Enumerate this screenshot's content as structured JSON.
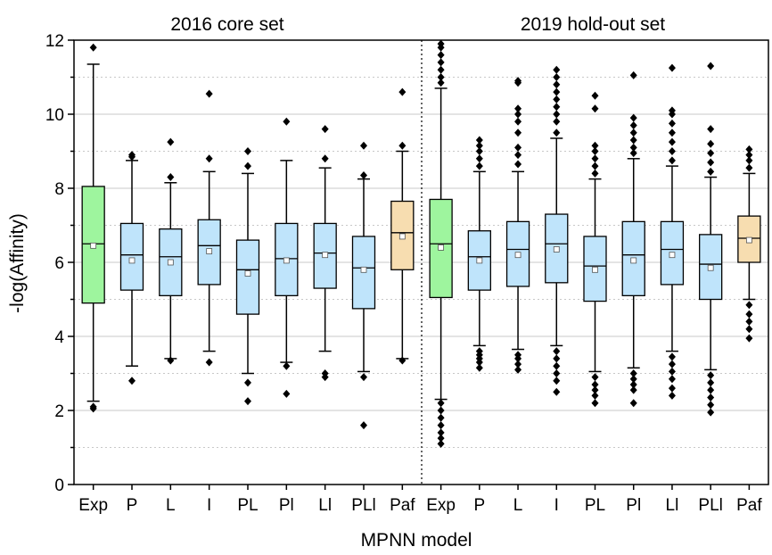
{
  "chart_data": {
    "type": "box",
    "ylabel": "-log(Affinity)",
    "xlabel": "MPNN model",
    "ylim": [
      0,
      12
    ],
    "yticks": [
      "0",
      "2",
      "4",
      "6",
      "8",
      "10",
      "12"
    ],
    "grid": true,
    "colors": {
      "exp": "#9ef59e",
      "model": "#bfe4fb",
      "paf": "#f7ddb0",
      "grid": "#c8c8c8"
    },
    "panels": [
      {
        "title": "2016 core set",
        "categories": [
          "Exp",
          "P",
          "L",
          "I",
          "PL",
          "Pl",
          "Ll",
          "PLl",
          "Paf"
        ],
        "boxes": [
          {
            "q1": 4.9,
            "median": 6.5,
            "q3": 8.05,
            "mean": 6.45,
            "whisker_low": 2.25,
            "whisker_high": 11.35,
            "outliers": [
              2.1,
              2.05,
              11.8
            ],
            "style": "exp"
          },
          {
            "q1": 5.25,
            "median": 6.2,
            "q3": 7.05,
            "mean": 6.05,
            "whisker_low": 3.2,
            "whisker_high": 8.75,
            "outliers": [
              2.8,
              8.85,
              8.9
            ],
            "style": "model"
          },
          {
            "q1": 5.1,
            "median": 6.15,
            "q3": 6.9,
            "mean": 6.0,
            "whisker_low": 3.4,
            "whisker_high": 8.15,
            "outliers": [
              3.35,
              8.3,
              9.25
            ],
            "style": "model"
          },
          {
            "q1": 5.4,
            "median": 6.45,
            "q3": 7.15,
            "mean": 6.3,
            "whisker_low": 3.6,
            "whisker_high": 8.45,
            "outliers": [
              3.3,
              8.8,
              10.55
            ],
            "style": "model"
          },
          {
            "q1": 4.6,
            "median": 5.8,
            "q3": 6.6,
            "mean": 5.7,
            "whisker_low": 3.0,
            "whisker_high": 8.4,
            "outliers": [
              2.75,
              2.25,
              8.6,
              9.0
            ],
            "style": "model"
          },
          {
            "q1": 5.1,
            "median": 6.1,
            "q3": 7.05,
            "mean": 6.05,
            "whisker_low": 3.3,
            "whisker_high": 8.75,
            "outliers": [
              3.2,
              2.45,
              9.8
            ],
            "style": "model"
          },
          {
            "q1": 5.3,
            "median": 6.25,
            "q3": 7.05,
            "mean": 6.2,
            "whisker_low": 3.6,
            "whisker_high": 8.55,
            "outliers": [
              3.0,
              2.9,
              8.8,
              9.6
            ],
            "style": "model"
          },
          {
            "q1": 4.75,
            "median": 5.85,
            "q3": 6.7,
            "mean": 5.8,
            "whisker_low": 3.05,
            "whisker_high": 8.25,
            "outliers": [
              2.9,
              1.6,
              8.35,
              9.15
            ],
            "style": "model"
          },
          {
            "q1": 5.8,
            "median": 6.8,
            "q3": 7.65,
            "mean": 6.7,
            "whisker_low": 3.4,
            "whisker_high": 9.0,
            "outliers": [
              3.35,
              9.15,
              10.6
            ],
            "style": "paf"
          }
        ]
      },
      {
        "title": "2019 hold-out set",
        "categories": [
          "Exp",
          "P",
          "L",
          "I",
          "PL",
          "Pl",
          "Ll",
          "PLl",
          "Paf"
        ],
        "boxes": [
          {
            "q1": 5.05,
            "median": 6.5,
            "q3": 7.7,
            "mean": 6.4,
            "whisker_low": 2.3,
            "whisker_high": 10.7,
            "outliers": [
              2.2,
              2.0,
              1.8,
              1.6,
              1.4,
              1.25,
              1.1,
              10.85,
              11.0,
              11.2,
              11.4,
              11.6,
              11.8,
              11.9
            ],
            "style": "exp"
          },
          {
            "q1": 5.25,
            "median": 6.15,
            "q3": 6.85,
            "mean": 6.05,
            "whisker_low": 3.75,
            "whisker_high": 8.45,
            "outliers": [
              3.6,
              3.5,
              3.4,
              3.3,
              3.15,
              8.6,
              8.8,
              9.0,
              9.15,
              9.3
            ],
            "style": "model"
          },
          {
            "q1": 5.35,
            "median": 6.35,
            "q3": 7.1,
            "mean": 6.2,
            "whisker_low": 3.65,
            "whisker_high": 8.45,
            "outliers": [
              3.5,
              3.4,
              3.25,
              3.1,
              8.65,
              8.9,
              9.1,
              9.5,
              9.8,
              10.0,
              10.15,
              10.85,
              10.9
            ],
            "style": "model"
          },
          {
            "q1": 5.45,
            "median": 6.5,
            "q3": 7.3,
            "mean": 6.35,
            "whisker_low": 3.75,
            "whisker_high": 9.35,
            "outliers": [
              3.6,
              3.4,
              3.2,
              3.0,
              2.8,
              2.5,
              9.5,
              9.8,
              10.0,
              10.2,
              10.4,
              10.6,
              10.8,
              11.0,
              11.2
            ],
            "style": "model"
          },
          {
            "q1": 4.95,
            "median": 5.9,
            "q3": 6.7,
            "mean": 5.8,
            "whisker_low": 3.05,
            "whisker_high": 8.25,
            "outliers": [
              2.9,
              2.7,
              2.55,
              2.4,
              2.2,
              8.4,
              8.6,
              8.8,
              9.0,
              9.15,
              10.15,
              10.5
            ],
            "style": "model"
          },
          {
            "q1": 5.1,
            "median": 6.2,
            "q3": 7.1,
            "mean": 6.05,
            "whisker_low": 3.15,
            "whisker_high": 8.8,
            "outliers": [
              3.0,
              2.85,
              2.7,
              2.55,
              2.2,
              8.95,
              9.1,
              9.3,
              9.5,
              9.7,
              9.9,
              11.05
            ],
            "style": "model"
          },
          {
            "q1": 5.4,
            "median": 6.35,
            "q3": 7.1,
            "mean": 6.2,
            "whisker_low": 3.6,
            "whisker_high": 8.6,
            "outliers": [
              3.45,
              3.25,
              3.05,
              2.85,
              2.6,
              2.4,
              8.75,
              9.0,
              9.25,
              9.5,
              9.75,
              10.0,
              10.1,
              11.25
            ],
            "style": "model"
          },
          {
            "q1": 5.0,
            "median": 5.95,
            "q3": 6.75,
            "mean": 5.85,
            "whisker_low": 3.1,
            "whisker_high": 8.3,
            "outliers": [
              2.95,
              2.75,
              2.55,
              2.35,
              2.15,
              1.95,
              8.45,
              8.7,
              8.95,
              9.2,
              9.6,
              11.3
            ],
            "style": "model"
          },
          {
            "q1": 6.0,
            "median": 6.65,
            "q3": 7.25,
            "mean": 6.6,
            "whisker_low": 5.0,
            "whisker_high": 8.4,
            "outliers": [
              4.85,
              4.6,
              4.4,
              4.2,
              3.95,
              8.55,
              8.75,
              8.9,
              9.05
            ],
            "style": "paf"
          }
        ]
      }
    ]
  }
}
